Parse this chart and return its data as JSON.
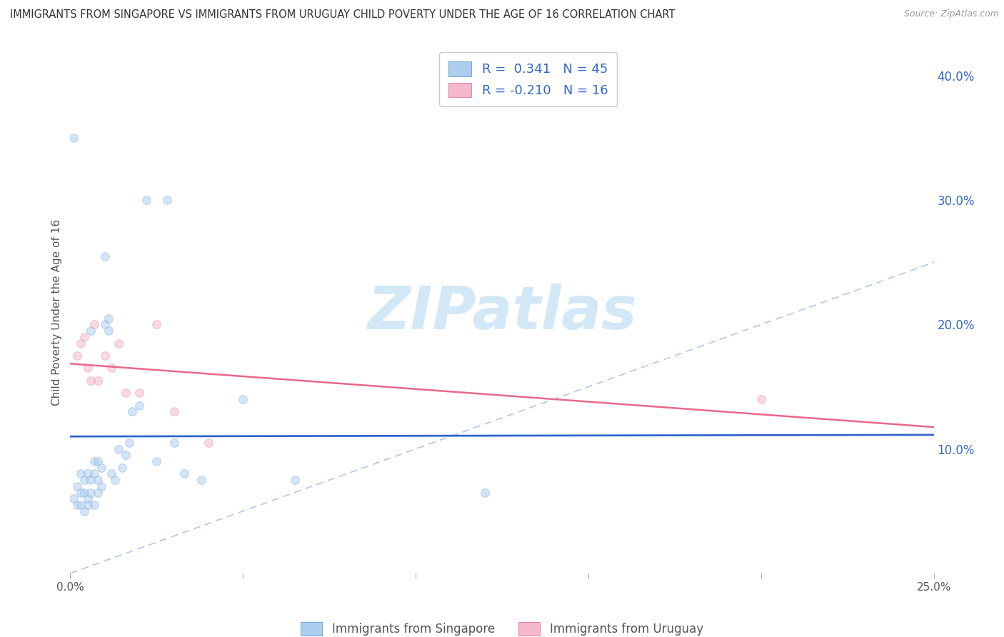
{
  "title": "IMMIGRANTS FROM SINGAPORE VS IMMIGRANTS FROM URUGUAY CHILD POVERTY UNDER THE AGE OF 16 CORRELATION CHART",
  "source": "Source: ZipAtlas.com",
  "ylabel": "Child Poverty Under the Age of 16",
  "xlim": [
    0.0,
    0.25
  ],
  "ylim": [
    0.0,
    0.42
  ],
  "xtick_positions": [
    0.0,
    0.05,
    0.1,
    0.15,
    0.2,
    0.25
  ],
  "xtick_labels": [
    "0.0%",
    "",
    "",
    "",
    "",
    "25.0%"
  ],
  "ytick_positions": [
    0.1,
    0.2,
    0.3,
    0.4
  ],
  "ytick_labels": [
    "10.0%",
    "20.0%",
    "30.0%",
    "40.0%"
  ],
  "singapore_color": "#aecef0",
  "singapore_edge": "#7aaad8",
  "uruguay_color": "#f5b8cc",
  "uruguay_edge": "#e088a8",
  "trendline_sg_color": "#3366cc",
  "trendline_uy_color": "#e8688a",
  "diag_color": "#b0c8e8",
  "singapore_R": 0.341,
  "singapore_N": 45,
  "uruguay_R": -0.21,
  "uruguay_N": 16,
  "legend_text_color": "#3366cc",
  "background_color": "#ffffff",
  "grid_color": "#cccccc",
  "watermark_color": "#cce5f5",
  "dot_size": 70,
  "dot_alpha": 0.55,
  "singapore_x": [
    0.001,
    0.001,
    0.002,
    0.002,
    0.003,
    0.003,
    0.003,
    0.004,
    0.004,
    0.004,
    0.005,
    0.005,
    0.005,
    0.006,
    0.006,
    0.006,
    0.007,
    0.007,
    0.007,
    0.008,
    0.008,
    0.008,
    0.009,
    0.009,
    0.01,
    0.01,
    0.011,
    0.011,
    0.012,
    0.013,
    0.014,
    0.015,
    0.016,
    0.017,
    0.018,
    0.02,
    0.022,
    0.025,
    0.028,
    0.03,
    0.033,
    0.038,
    0.05,
    0.065,
    0.12
  ],
  "singapore_y": [
    0.35,
    0.06,
    0.055,
    0.07,
    0.055,
    0.065,
    0.08,
    0.05,
    0.065,
    0.075,
    0.055,
    0.06,
    0.08,
    0.195,
    0.065,
    0.075,
    0.055,
    0.08,
    0.09,
    0.065,
    0.075,
    0.09,
    0.07,
    0.085,
    0.2,
    0.255,
    0.195,
    0.205,
    0.08,
    0.075,
    0.1,
    0.085,
    0.095,
    0.105,
    0.13,
    0.135,
    0.3,
    0.09,
    0.3,
    0.105,
    0.08,
    0.075,
    0.14,
    0.075,
    0.065
  ],
  "uruguay_x": [
    0.002,
    0.003,
    0.004,
    0.005,
    0.006,
    0.007,
    0.008,
    0.01,
    0.012,
    0.014,
    0.016,
    0.02,
    0.025,
    0.03,
    0.04,
    0.2
  ],
  "uruguay_y": [
    0.175,
    0.185,
    0.19,
    0.165,
    0.155,
    0.2,
    0.155,
    0.175,
    0.165,
    0.185,
    0.145,
    0.145,
    0.2,
    0.13,
    0.105,
    0.14
  ]
}
